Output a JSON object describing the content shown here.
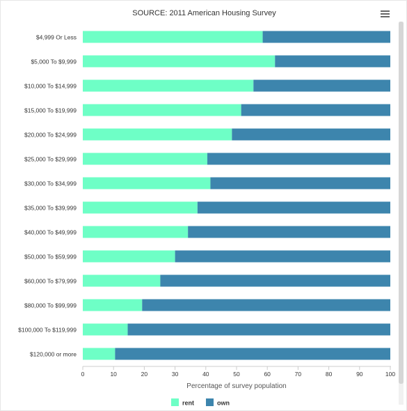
{
  "title": "SOURCE: 2011 American Housing Survey",
  "menu_icon": "hamburger-menu-icon",
  "chart_data": {
    "type": "bar",
    "orientation": "horizontal",
    "stacking": "percent",
    "categories": [
      "$4,999 Or Less",
      "$5,000 To $9,999",
      "$10,000 To $14,999",
      "$15,000 To $19,999",
      "$20,000 To $24,999",
      "$25,000 To $29,999",
      "$30,000 To $34,999",
      "$35,000 To $39,999",
      "$40,000 To $49,999",
      "$50,000 To $59,999",
      "$60,000 To $79,999",
      "$80,000 To $99,999",
      "$100,000 To $119,999",
      "$120,000 or more"
    ],
    "series": [
      {
        "name": "rent",
        "color": "#6effc6",
        "values": [
          58.5,
          62.5,
          55.5,
          51.5,
          48.5,
          40.5,
          41.5,
          37.3,
          34.2,
          30,
          25.2,
          19.3,
          14.6,
          10.5
        ]
      },
      {
        "name": "own",
        "color": "#3d85ad",
        "values": [
          41.5,
          37.5,
          44.5,
          48.5,
          51.5,
          59.5,
          58.5,
          62.7,
          65.8,
          70,
          74.8,
          80.7,
          85.4,
          89.5
        ]
      }
    ],
    "xlabel": "Percentage of survey population",
    "ylabel": "",
    "xlim": [
      0,
      100
    ],
    "xticks": [
      "0",
      "10",
      "20",
      "30",
      "40",
      "50",
      "60",
      "70",
      "80",
      "90",
      "100"
    ],
    "legend_position": "bottom-center",
    "grid": false
  }
}
